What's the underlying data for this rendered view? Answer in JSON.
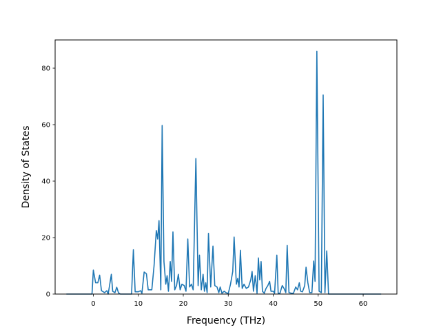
{
  "chart_data": {
    "type": "line",
    "xlabel": "Frequency (THz)",
    "ylabel": "Density of States",
    "xlim": [
      -8.5,
      67.5
    ],
    "ylim": [
      0,
      90
    ],
    "xticks": [
      0,
      10,
      20,
      30,
      40,
      50,
      60
    ],
    "yticks": [
      0,
      20,
      40,
      60,
      80
    ],
    "grid": false,
    "legend": "none",
    "series": [
      {
        "color": "#1f77b4",
        "points": [
          [
            -6,
            0
          ],
          [
            -0.3,
            0
          ],
          [
            0,
            8.5
          ],
          [
            0.5,
            4
          ],
          [
            1.0,
            4
          ],
          [
            1.4,
            6.7
          ],
          [
            1.8,
            1.2
          ],
          [
            2.5,
            0.5
          ],
          [
            3.0,
            1.2
          ],
          [
            3.3,
            0
          ],
          [
            3.6,
            3
          ],
          [
            4.0,
            7
          ],
          [
            4.3,
            1
          ],
          [
            4.8,
            0.5
          ],
          [
            5.2,
            2.4
          ],
          [
            5.6,
            0.4
          ],
          [
            6.0,
            0
          ],
          [
            8.5,
            0
          ],
          [
            8.9,
            15.7
          ],
          [
            9.3,
            0.8
          ],
          [
            10.0,
            0.8
          ],
          [
            10.5,
            1.2
          ],
          [
            10.8,
            0.3
          ],
          [
            11.3,
            7.8
          ],
          [
            11.8,
            7.2
          ],
          [
            12.2,
            1.5
          ],
          [
            13.0,
            1.5
          ],
          [
            13.5,
            10
          ],
          [
            14.0,
            22.5
          ],
          [
            14.3,
            19.5
          ],
          [
            14.6,
            26
          ],
          [
            15.0,
            1.5
          ],
          [
            15.3,
            59.7
          ],
          [
            15.7,
            11.5
          ],
          [
            16.1,
            3.5
          ],
          [
            16.4,
            6.5
          ],
          [
            16.7,
            1
          ],
          [
            17.1,
            11.5
          ],
          [
            17.4,
            4.5
          ],
          [
            17.7,
            22
          ],
          [
            18.1,
            1.5
          ],
          [
            18.5,
            3
          ],
          [
            18.9,
            7
          ],
          [
            19.3,
            1.5
          ],
          [
            19.7,
            3.5
          ],
          [
            20.2,
            3
          ],
          [
            20.6,
            1
          ],
          [
            21.0,
            19.5
          ],
          [
            21.4,
            2.5
          ],
          [
            21.8,
            3.5
          ],
          [
            22.2,
            1.5
          ],
          [
            22.8,
            48
          ],
          [
            23.3,
            3
          ],
          [
            23.6,
            13.8
          ],
          [
            24.0,
            1.5
          ],
          [
            24.4,
            7
          ],
          [
            24.7,
            1
          ],
          [
            25.0,
            4
          ],
          [
            25.3,
            0.5
          ],
          [
            25.6,
            21.5
          ],
          [
            26.1,
            2.5
          ],
          [
            26.6,
            17
          ],
          [
            27.0,
            3
          ],
          [
            27.5,
            2.5
          ],
          [
            27.9,
            0.5
          ],
          [
            28.2,
            2.5
          ],
          [
            28.6,
            0.3
          ],
          [
            29.1,
            1
          ],
          [
            29.5,
            0.5
          ],
          [
            30.0,
            0.2
          ],
          [
            30.5,
            3.5
          ],
          [
            31.0,
            8
          ],
          [
            31.3,
            20.2
          ],
          [
            31.8,
            3.5
          ],
          [
            32.1,
            5.5
          ],
          [
            32.4,
            2.5
          ],
          [
            32.7,
            15.5
          ],
          [
            33.1,
            2
          ],
          [
            33.5,
            3.5
          ],
          [
            34.0,
            2
          ],
          [
            34.5,
            2.5
          ],
          [
            35.0,
            5
          ],
          [
            35.3,
            8
          ],
          [
            35.6,
            1
          ],
          [
            36.0,
            6.5
          ],
          [
            36.4,
            0.3
          ],
          [
            36.7,
            12.8
          ],
          [
            37.0,
            5
          ],
          [
            37.3,
            11.5
          ],
          [
            37.6,
            1
          ],
          [
            38.0,
            0.3
          ],
          [
            38.4,
            2
          ],
          [
            38.8,
            3
          ],
          [
            39.2,
            4.5
          ],
          [
            39.5,
            1
          ],
          [
            40.0,
            1
          ],
          [
            40.3,
            0.3
          ],
          [
            40.8,
            13.8
          ],
          [
            41.1,
            0.3
          ],
          [
            41.5,
            0.3
          ],
          [
            42.0,
            3
          ],
          [
            42.4,
            2
          ],
          [
            42.8,
            0.5
          ],
          [
            43.1,
            17.2
          ],
          [
            43.5,
            0.5
          ],
          [
            44.0,
            0.3
          ],
          [
            44.5,
            0.3
          ],
          [
            45.0,
            2.5
          ],
          [
            45.4,
            1.5
          ],
          [
            45.8,
            4
          ],
          [
            46.1,
            1
          ],
          [
            46.5,
            0.8
          ],
          [
            47.0,
            3
          ],
          [
            47.3,
            9.5
          ],
          [
            47.7,
            4
          ],
          [
            48.1,
            0.5
          ],
          [
            48.6,
            0.5
          ],
          [
            49.0,
            11.7
          ],
          [
            49.3,
            4.5
          ],
          [
            49.7,
            86
          ],
          [
            50.2,
            1
          ],
          [
            50.7,
            0.5
          ],
          [
            51.1,
            70.5
          ],
          [
            51.5,
            0.5
          ],
          [
            51.9,
            15.3
          ],
          [
            52.3,
            0
          ],
          [
            64,
            0
          ]
        ]
      }
    ]
  }
}
